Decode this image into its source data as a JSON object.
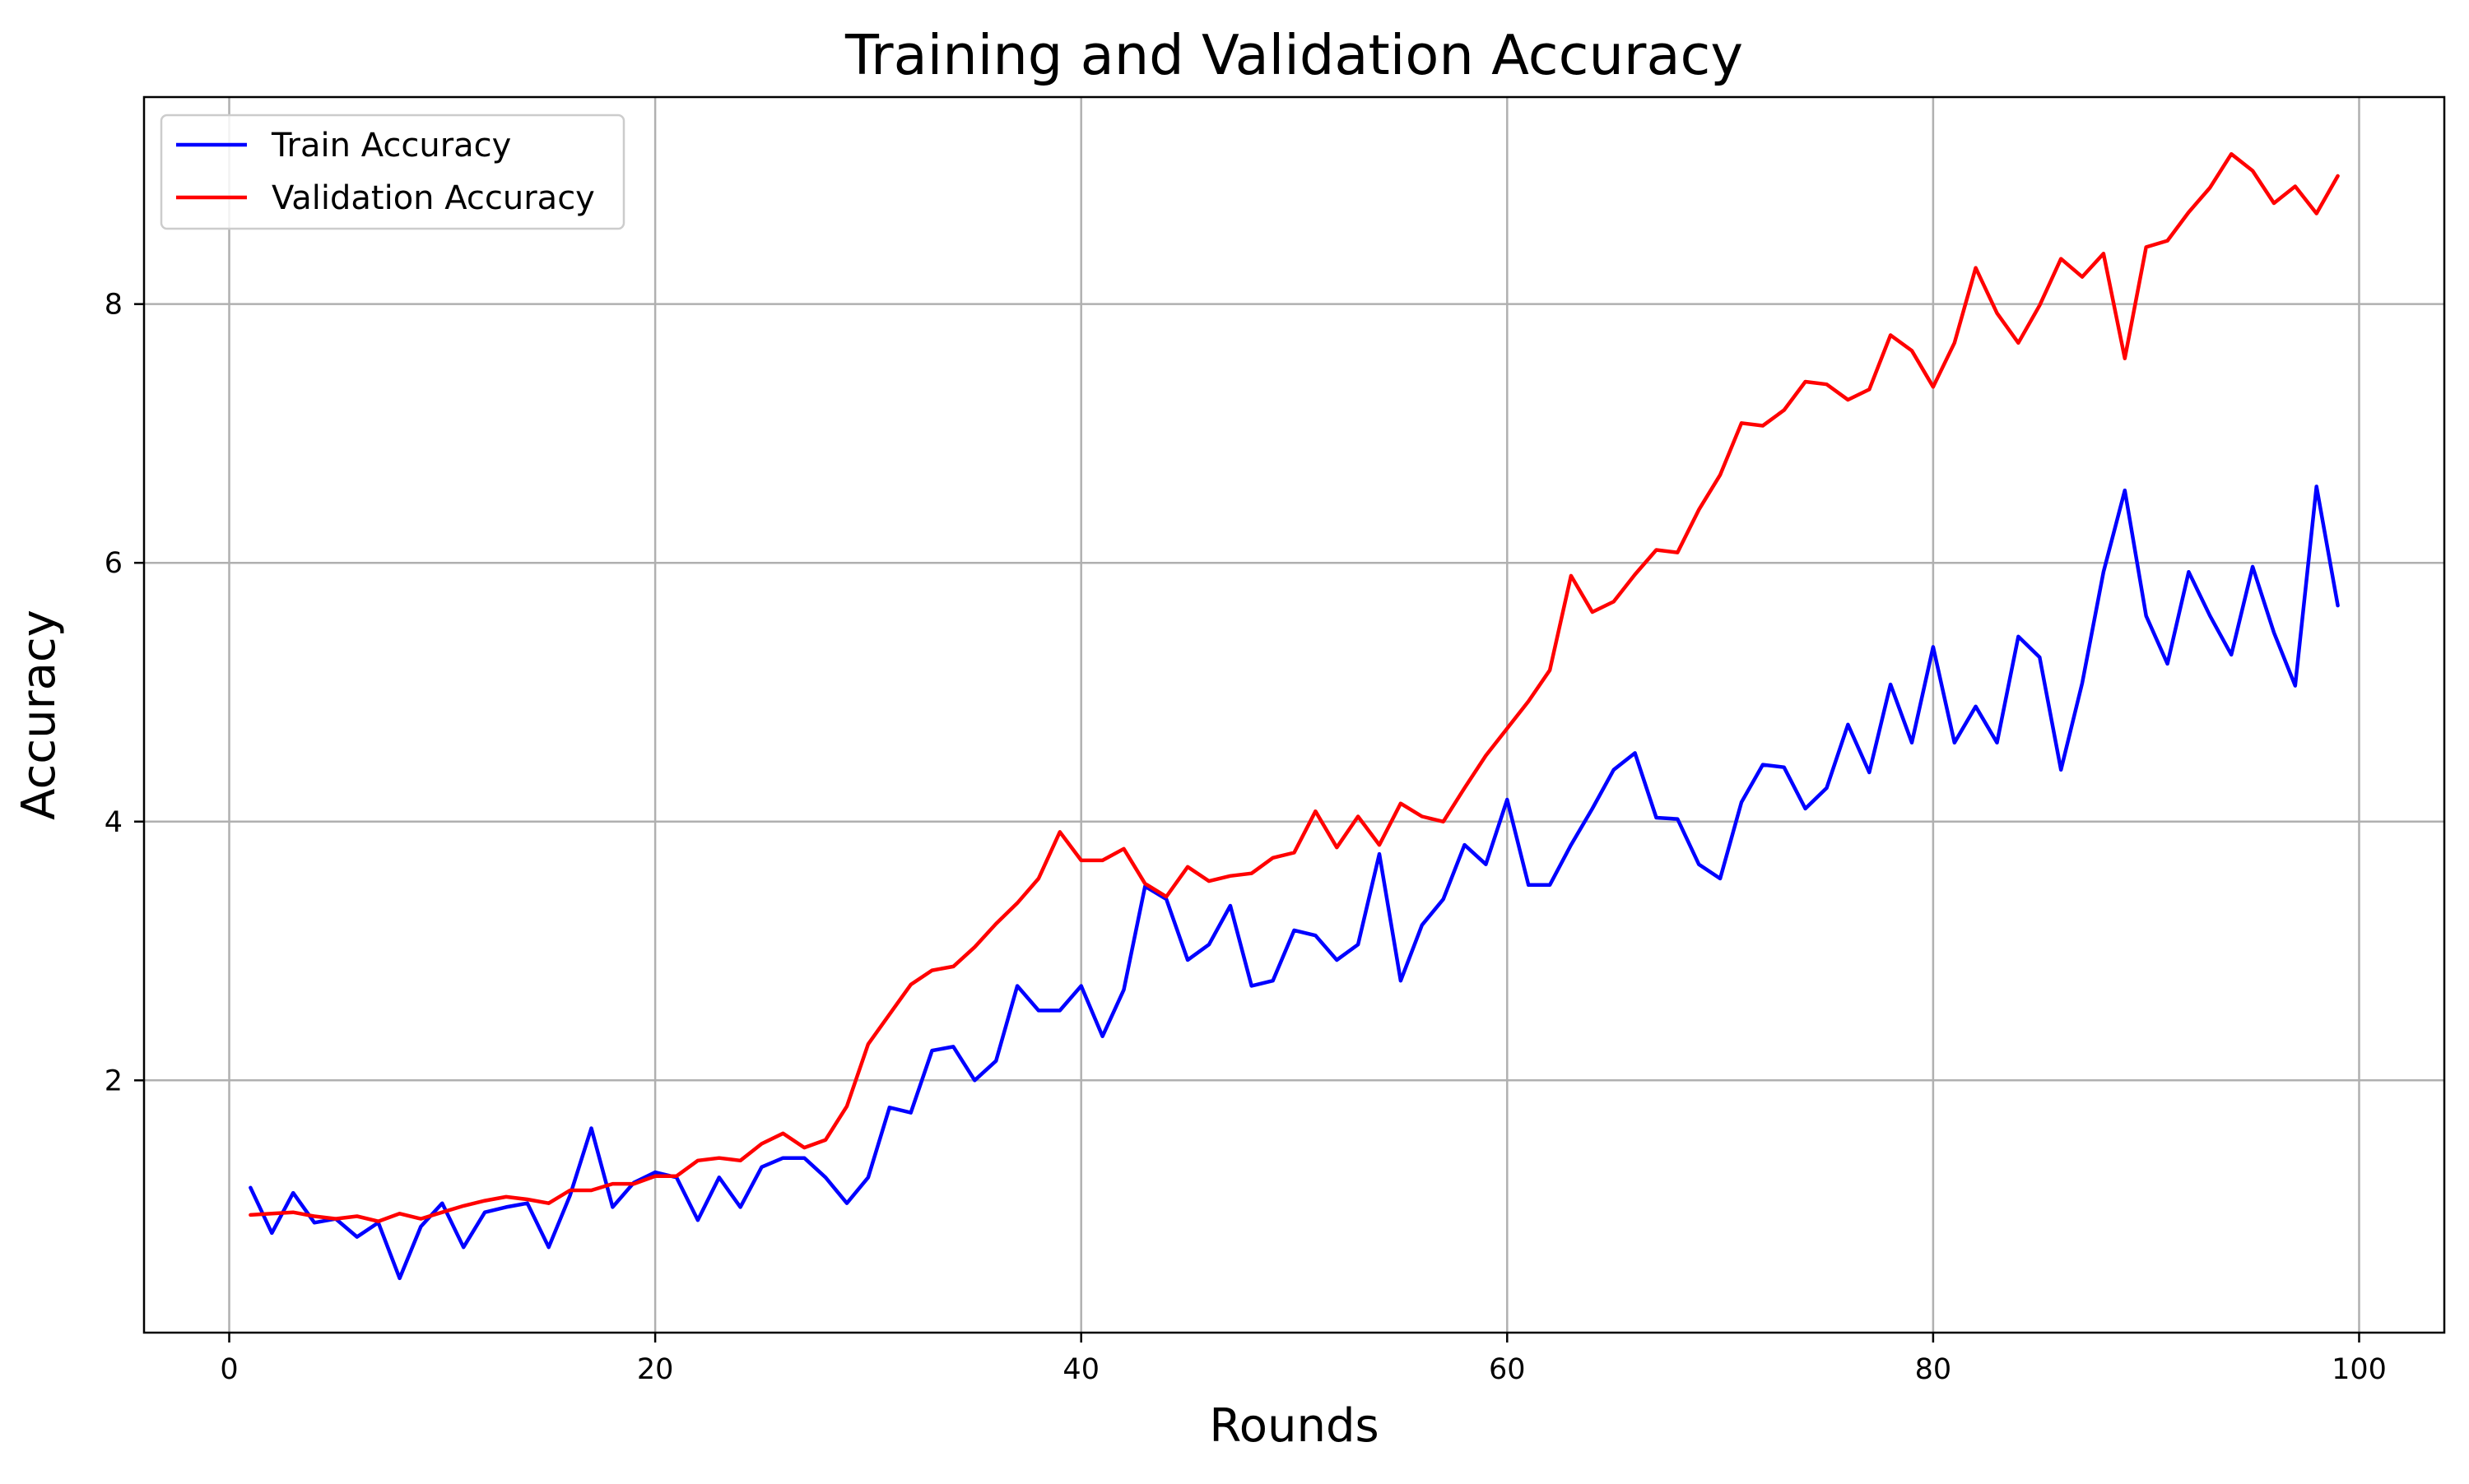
{
  "chart_data": {
    "type": "line",
    "title": "Training and Validation Accuracy",
    "xlabel": "Rounds",
    "ylabel": "Accuracy",
    "xlim": [
      -4,
      104
    ],
    "ylim": [
      0.05,
      9.6
    ],
    "xticks": [
      0,
      20,
      40,
      60,
      80,
      100
    ],
    "yticks": [
      2,
      4,
      6,
      8
    ],
    "grid": true,
    "legend_position": "top-left",
    "x": [
      1,
      2,
      3,
      4,
      5,
      6,
      7,
      8,
      9,
      10,
      11,
      12,
      13,
      14,
      15,
      16,
      17,
      18,
      19,
      20,
      21,
      22,
      23,
      24,
      25,
      26,
      27,
      28,
      29,
      30,
      31,
      32,
      33,
      34,
      35,
      36,
      37,
      38,
      39,
      40,
      41,
      42,
      43,
      44,
      45,
      46,
      47,
      48,
      49,
      50,
      51,
      52,
      53,
      54,
      55,
      56,
      57,
      58,
      59,
      60,
      61,
      62,
      63,
      64,
      65,
      66,
      67,
      68,
      69,
      70,
      71,
      72,
      73,
      74,
      75,
      76,
      77,
      78,
      79,
      80,
      81,
      82,
      83,
      84,
      85,
      86,
      87,
      88,
      89,
      90,
      91,
      92,
      93,
      94,
      95,
      96,
      97,
      98,
      99
    ],
    "series": [
      {
        "name": "Train Accuracy",
        "color": "#0000ff",
        "values": [
          1.17,
          0.82,
          1.13,
          0.9,
          0.93,
          0.79,
          0.9,
          0.47,
          0.87,
          1.05,
          0.71,
          0.98,
          1.02,
          1.05,
          0.71,
          1.11,
          1.63,
          1.02,
          1.21,
          1.29,
          1.25,
          0.92,
          1.25,
          1.02,
          1.33,
          1.4,
          1.4,
          1.25,
          1.05,
          1.25,
          1.79,
          1.75,
          2.23,
          2.26,
          2.0,
          2.15,
          2.73,
          2.54,
          2.54,
          2.73,
          2.34,
          2.7,
          3.5,
          3.4,
          2.93,
          3.05,
          3.35,
          2.73,
          2.77,
          3.16,
          3.12,
          2.93,
          3.05,
          3.75,
          2.77,
          3.2,
          3.4,
          3.82,
          3.67,
          4.17,
          3.51,
          3.51,
          3.82,
          4.1,
          4.4,
          4.53,
          4.03,
          4.02,
          3.67,
          3.56,
          4.15,
          4.44,
          4.42,
          4.1,
          4.26,
          4.75,
          4.38,
          5.06,
          4.61,
          5.35,
          4.61,
          4.89,
          4.61,
          5.43,
          5.27,
          4.4,
          5.07,
          5.93,
          6.56,
          5.59,
          5.22,
          5.93,
          5.59,
          5.29,
          5.97,
          5.46,
          5.05,
          6.59,
          5.67
        ]
      },
      {
        "name": "Validation Accuracy",
        "color": "#ff0000",
        "values": [
          0.96,
          0.97,
          0.98,
          0.95,
          0.93,
          0.95,
          0.91,
          0.97,
          0.93,
          0.98,
          1.03,
          1.07,
          1.1,
          1.08,
          1.05,
          1.15,
          1.15,
          1.2,
          1.2,
          1.26,
          1.26,
          1.38,
          1.4,
          1.38,
          1.51,
          1.59,
          1.48,
          1.54,
          1.8,
          2.28,
          2.51,
          2.74,
          2.85,
          2.88,
          3.03,
          3.21,
          3.37,
          3.56,
          3.92,
          3.7,
          3.7,
          3.79,
          3.52,
          3.42,
          3.65,
          3.54,
          3.58,
          3.6,
          3.72,
          3.76,
          4.08,
          3.8,
          4.04,
          3.82,
          4.14,
          4.04,
          4.0,
          4.26,
          4.51,
          4.72,
          4.93,
          5.17,
          5.9,
          5.62,
          5.7,
          5.91,
          6.1,
          6.08,
          6.41,
          6.68,
          7.08,
          7.06,
          7.18,
          7.4,
          7.38,
          7.26,
          7.34,
          7.76,
          7.64,
          7.36,
          7.7,
          8.28,
          7.93,
          7.7,
          7.99,
          8.35,
          8.21,
          8.39,
          7.58,
          8.44,
          8.49,
          8.71,
          8.9,
          9.16,
          9.03,
          8.78,
          8.91,
          8.7,
          8.99
        ]
      }
    ]
  }
}
